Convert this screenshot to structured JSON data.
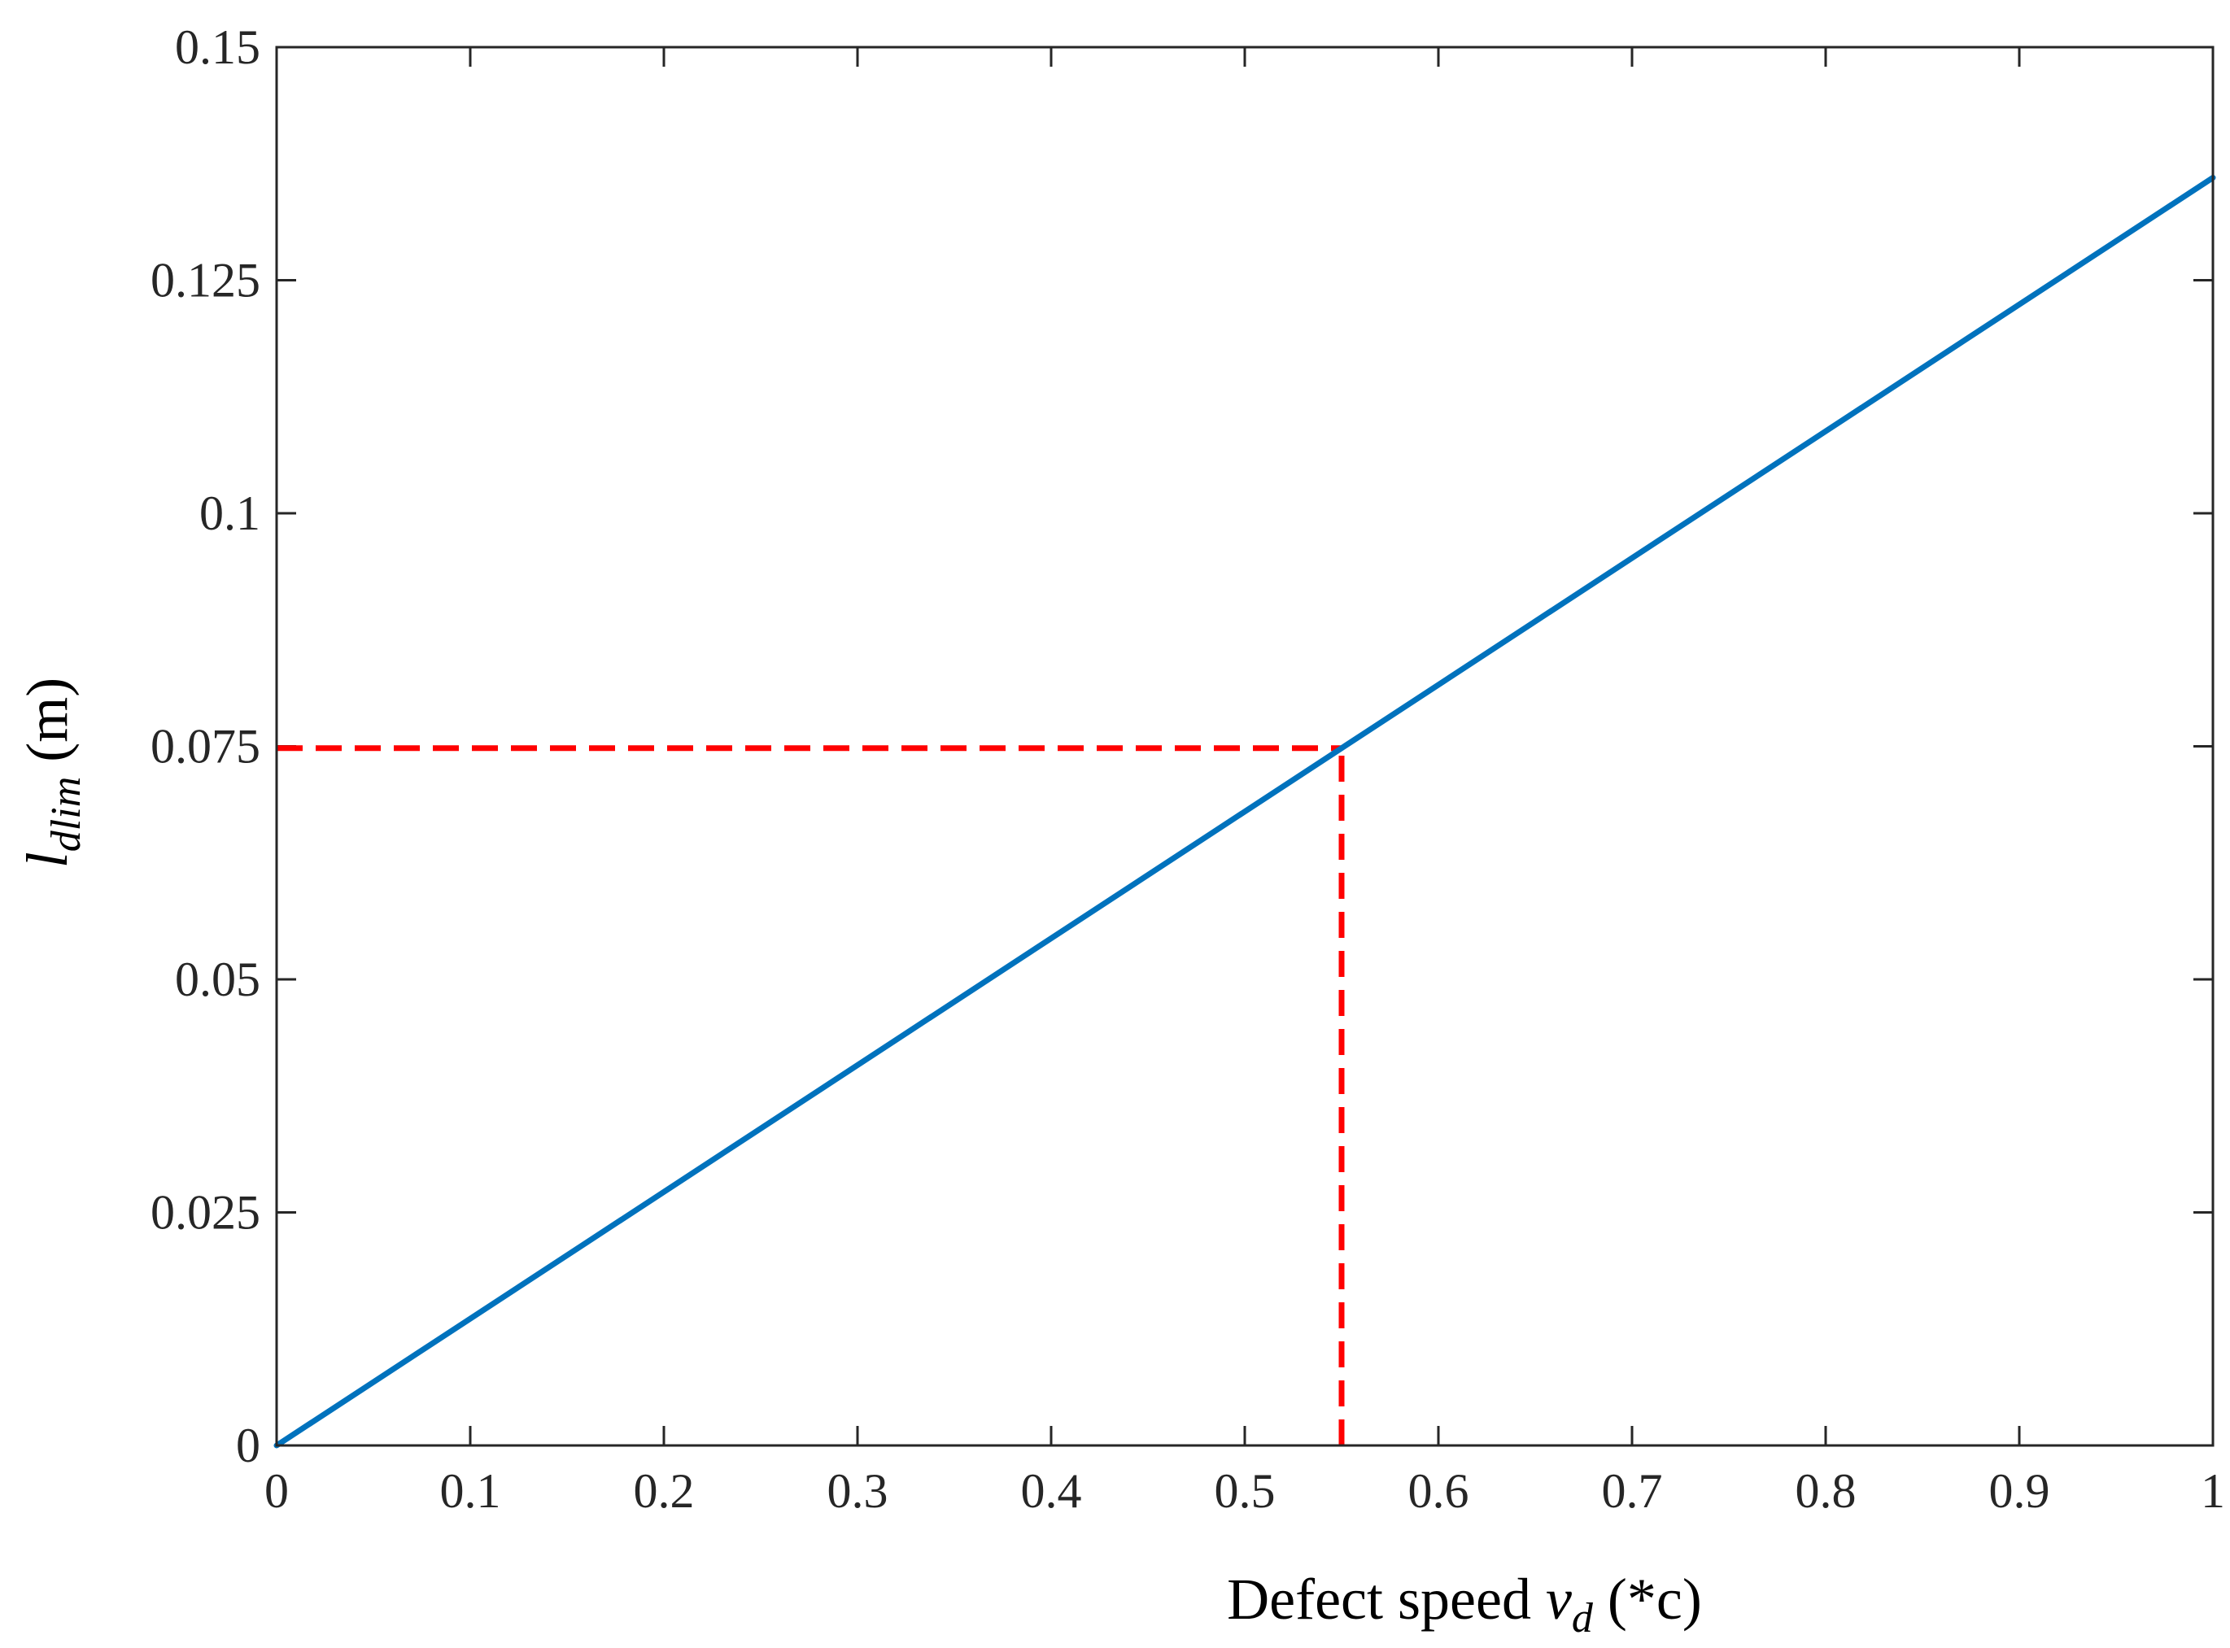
{
  "chart_data": {
    "type": "line",
    "title": "",
    "xlabel": {
      "prefix": "Defect speed ",
      "var": "v",
      "sub": "d",
      "suffix": " (*c)"
    },
    "ylabel": {
      "var": "l",
      "sub": "dlim",
      "suffix": " (m)"
    },
    "xlim": [
      0,
      1
    ],
    "ylim": [
      0,
      0.15
    ],
    "x_ticks": [
      0,
      0.1,
      0.2,
      0.3,
      0.4,
      0.5,
      0.6,
      0.7,
      0.8,
      0.9,
      1
    ],
    "x_tick_labels": [
      "0",
      "0.1",
      "0.2",
      "0.3",
      "0.4",
      "0.5",
      "0.6",
      "0.7",
      "0.8",
      "0.9",
      "1"
    ],
    "y_ticks": [
      0,
      0.025,
      0.05,
      0.075,
      0.1,
      0.125,
      0.15
    ],
    "y_tick_labels": [
      "0",
      "0.025",
      "0.05",
      "0.075",
      "0.1",
      "0.125",
      "0.15"
    ],
    "grid": false,
    "series": [
      {
        "name": "l_dlim",
        "color": "#0072BD",
        "style": "solid",
        "x": [
          0,
          1
        ],
        "y": [
          0,
          0.136
        ]
      }
    ],
    "annotations": [
      {
        "name": "marker-horizontal",
        "color": "#FF0000",
        "style": "dashed",
        "x": [
          0,
          0.55
        ],
        "y": [
          0.0748,
          0.0748
        ]
      },
      {
        "name": "marker-vertical",
        "color": "#FF0000",
        "style": "dashed",
        "x": [
          0.55,
          0.55
        ],
        "y": [
          0,
          0.0748
        ]
      }
    ]
  }
}
